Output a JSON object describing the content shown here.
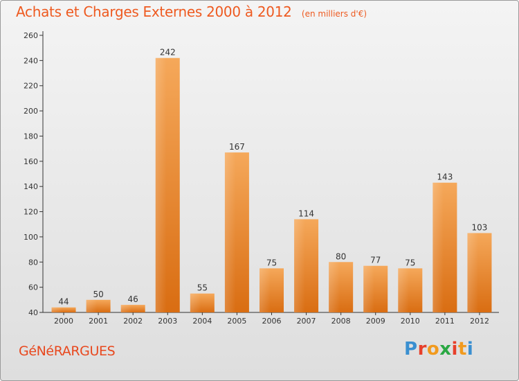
{
  "header": {
    "title": "Achats et Charges Externes 2000 à 2012",
    "subtitle": "(en milliers d'€)"
  },
  "footer": {
    "town": "GéNéRARGUES",
    "logo_letters": [
      "P",
      "r",
      "o",
      "x",
      "i",
      "t",
      "i"
    ],
    "logo_colors": [
      "#3a8fd0",
      "#e7402b",
      "#f19a1e",
      "#2aa843",
      "#e7402b",
      "#f19a1e",
      "#3a8fd0"
    ]
  },
  "colors": {
    "bar_light": "#f5a85a",
    "bar_dark": "#d96d12",
    "axis": "#333333",
    "grid": "#ffffff"
  },
  "chart_data": {
    "type": "bar",
    "title": "Achats et Charges Externes 2000 à 2012",
    "subtitle": "(en milliers d'€)",
    "categories": [
      "2000",
      "2001",
      "2002",
      "2003",
      "2004",
      "2005",
      "2006",
      "2007",
      "2008",
      "2009",
      "2010",
      "2011",
      "2012"
    ],
    "values": [
      44,
      50,
      46,
      242,
      55,
      167,
      75,
      114,
      80,
      77,
      75,
      143,
      103
    ],
    "ylim": [
      40,
      260
    ],
    "yticks": [
      40,
      60,
      80,
      100,
      120,
      140,
      160,
      180,
      200,
      220,
      240,
      260
    ],
    "grid": false,
    "legend": "none"
  }
}
